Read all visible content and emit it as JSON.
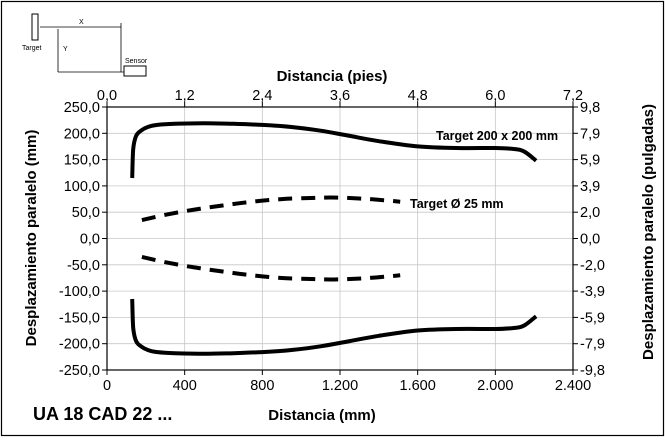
{
  "chart_data": {
    "type": "line",
    "title": "UA 18 CAD 22 ...",
    "xlabel": "Distancia (mm)",
    "x2label": "Distancia (pies)",
    "ylabel": "Desplazamiento paralelo (mm)",
    "y2label": "Desplazamiento paralelo (pulgadas)",
    "xlim": [
      0,
      2400
    ],
    "ylim": [
      -250,
      250
    ],
    "x2lim": [
      0,
      7.2
    ],
    "x_ticks": [
      "0",
      "400",
      "800",
      "1.200",
      "1.600",
      "2.000",
      "2.400"
    ],
    "x2_ticks": [
      "0,0",
      "1,2",
      "2,4",
      "3,6",
      "4,8",
      "6,0",
      "7,2"
    ],
    "y_ticks": [
      "250,0",
      "200,0",
      "150,0",
      "100,0",
      "50,0",
      "0,0",
      "-50,0",
      "-100,0",
      "-150,0",
      "-200,0",
      "-250,0"
    ],
    "y2_ticks": [
      "9,8",
      "7,9",
      "5,9",
      "3,9",
      "2,0",
      "0,0",
      "-2,0",
      "-3,9",
      "-5,9",
      "-7,9",
      "-9,8"
    ],
    "grid": true,
    "colors": {
      "grid": "#c8c8c8",
      "line": "#000000",
      "frame": "#000000"
    },
    "series": [
      {
        "name": "Target 200 x 200 mm",
        "style": "solid",
        "x": [
          130,
          135,
          150,
          175,
          210,
          260,
          350,
          500,
          650,
          800,
          950,
          1100,
          1250,
          1400,
          1600,
          1800,
          2000,
          2100,
          2150,
          2210
        ],
        "y": [
          115,
          170,
          195,
          205,
          212,
          216,
          218,
          219,
          218,
          216,
          212,
          205,
          195,
          185,
          175,
          172,
          172,
          170,
          165,
          148
        ]
      },
      {
        "name": "",
        "style": "solid",
        "x": [
          130,
          135,
          150,
          175,
          210,
          260,
          350,
          500,
          650,
          800,
          950,
          1100,
          1250,
          1400,
          1600,
          1800,
          2000,
          2100,
          2150,
          2210
        ],
        "y": [
          -115,
          -170,
          -195,
          -205,
          -212,
          -216,
          -218,
          -219,
          -218,
          -216,
          -212,
          -205,
          -195,
          -185,
          -175,
          -172,
          -172,
          -170,
          -165,
          -148
        ]
      },
      {
        "name": "Target Ø 25 mm",
        "style": "dashed",
        "x": [
          180,
          300,
          450,
          600,
          750,
          900,
          1050,
          1150,
          1250,
          1350,
          1450,
          1510
        ],
        "y": [
          35,
          45,
          55,
          63,
          70,
          75,
          77,
          78,
          77,
          75,
          72,
          70
        ]
      },
      {
        "name": "",
        "style": "dashed",
        "x": [
          180,
          300,
          450,
          600,
          750,
          900,
          1050,
          1150,
          1250,
          1350,
          1450,
          1510
        ],
        "y": [
          -35,
          -45,
          -55,
          -63,
          -70,
          -75,
          -77,
          -78,
          -77,
          -75,
          -72,
          -70
        ]
      }
    ],
    "annotations": [
      "Target 200 x 200 mm",
      "Target Ø 25 mm"
    ]
  },
  "diagram": {
    "target_label": "Target",
    "sensor_label": "Sensor",
    "x_label": "X",
    "y_label": "Y"
  }
}
